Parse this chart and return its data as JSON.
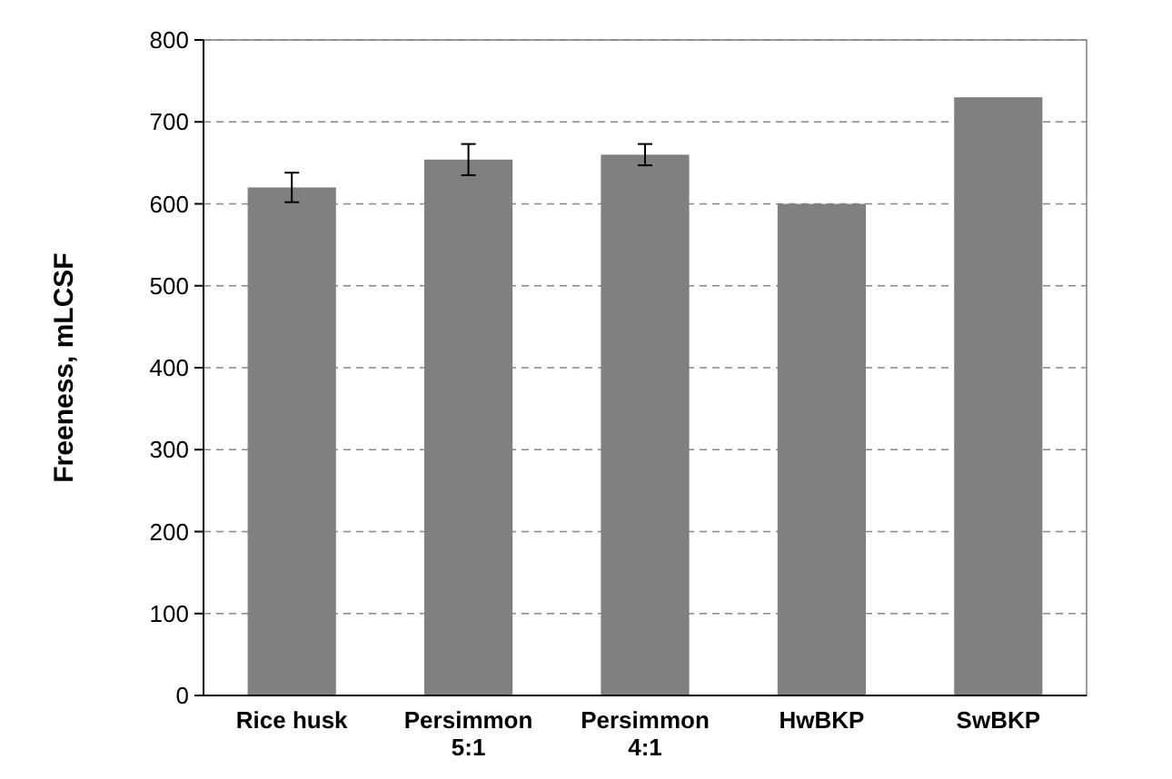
{
  "chart_data": {
    "type": "bar",
    "ylabel": "Freeness, mLCSF",
    "categories": [
      "Rice husk",
      "Persimmon 5:1",
      "Persimmon 4:1",
      "HwBKP",
      "SwBKP"
    ],
    "values": [
      620,
      654,
      660,
      600,
      730
    ],
    "errors": [
      18,
      19,
      13,
      null,
      null
    ],
    "color": "#808080",
    "ylim": [
      0,
      800
    ],
    "yticks": [
      0,
      100,
      200,
      300,
      400,
      500,
      600,
      700,
      800
    ],
    "grid": "y"
  }
}
